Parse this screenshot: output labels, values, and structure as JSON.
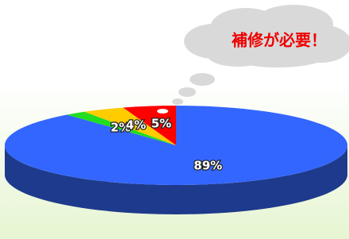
{
  "chart_data": {
    "type": "pie3d",
    "values": [
      89,
      2,
      4,
      5
    ],
    "value_labels": [
      "89%",
      "2%",
      "4%",
      "5%"
    ],
    "colors": [
      "#3366ff",
      "#22dd22",
      "#ffcc00",
      "#ff0000"
    ],
    "annotation": "補修が必要！"
  }
}
